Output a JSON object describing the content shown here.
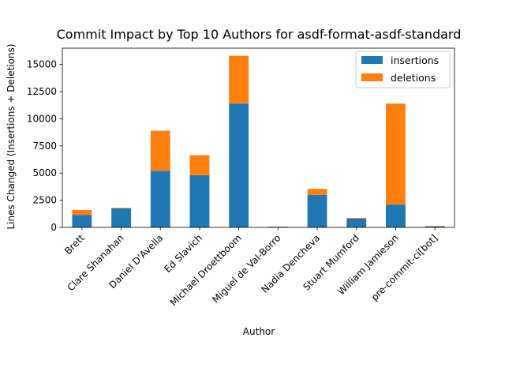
{
  "chart_data": {
    "type": "bar",
    "stacked": true,
    "title": "Commit Impact by Top 10 Authors for asdf-format-asdf-standard",
    "xlabel": "Author",
    "ylabel": "Lines Changed (Insertions + Deletions)",
    "ylim": [
      0,
      16500
    ],
    "yticks": [
      0,
      2500,
      5000,
      7500,
      10000,
      12500,
      15000
    ],
    "ytick_labels": [
      "0",
      "2500",
      "5000",
      "7500",
      "10000",
      "12500",
      "15000"
    ],
    "categories": [
      "Brett",
      "Clare Shanahan",
      "Daniel D'Avella",
      "Ed Slavich",
      "Michael Droettboom",
      "Miguel de Val-Borro",
      "Nadia Dencheva",
      "Stuart Mumford",
      "William Jamieson",
      "pre-commit-ci[bot]"
    ],
    "series": [
      {
        "name": "insertions",
        "color": "#1f77b4",
        "values": [
          1150,
          1750,
          5200,
          4800,
          11400,
          60,
          3000,
          800,
          2100,
          80
        ]
      },
      {
        "name": "deletions",
        "color": "#ff7f0e",
        "values": [
          450,
          50,
          3700,
          1850,
          4400,
          20,
          550,
          70,
          9300,
          60
        ]
      }
    ],
    "legend_position": "top-right",
    "grid": false
  }
}
